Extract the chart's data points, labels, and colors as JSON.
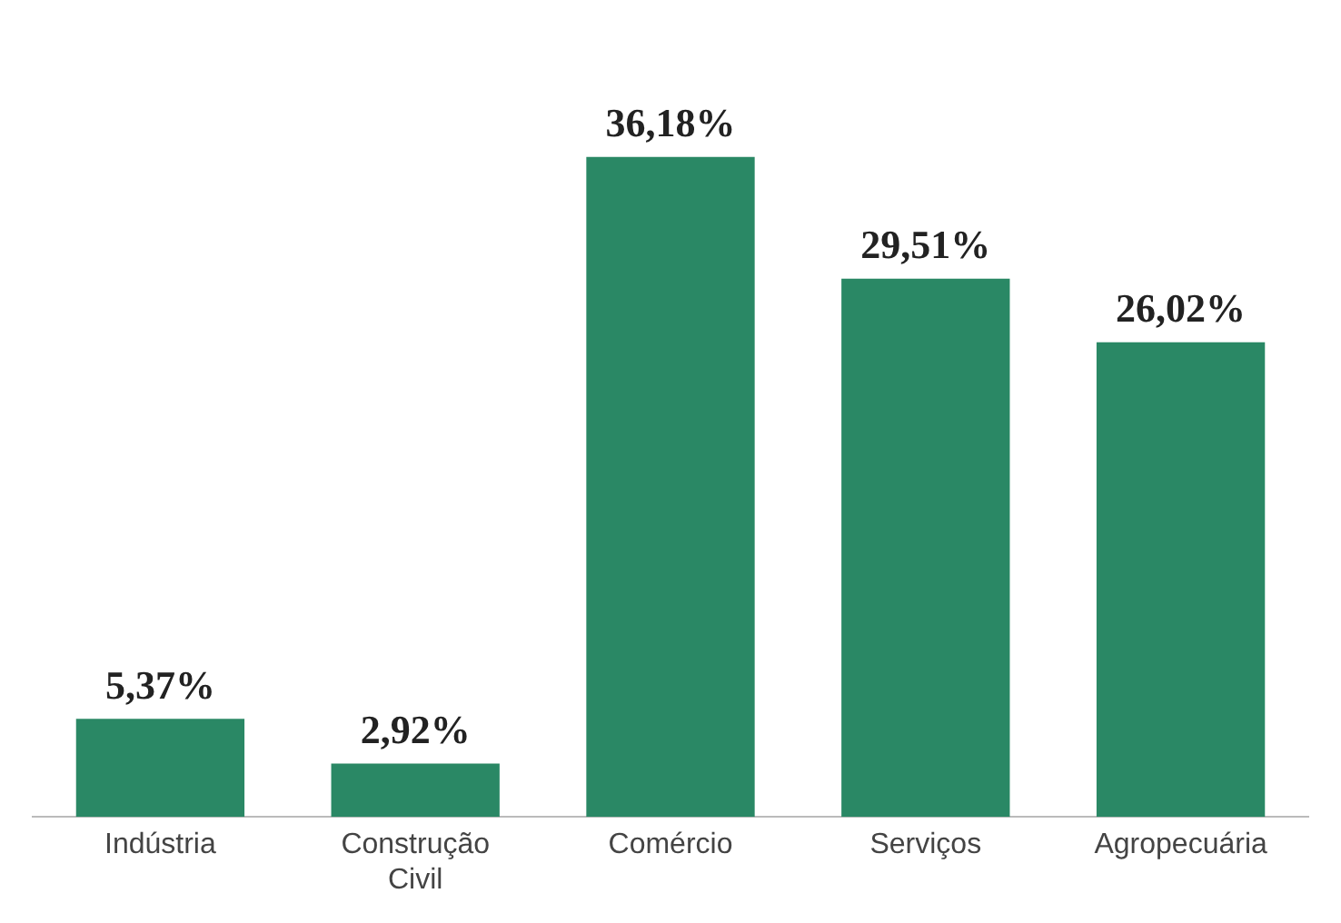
{
  "chart_data": {
    "type": "bar",
    "categories": [
      "Indústria",
      "Construção Civil",
      "Comércio",
      "Serviços",
      "Agropecuária"
    ],
    "values": [
      5.37,
      2.92,
      36.18,
      29.51,
      26.02
    ],
    "value_labels": [
      "5,37%",
      "2,92%",
      "36,18%",
      "29,51%",
      "26,02%"
    ],
    "color": "#2a8865",
    "grid": false,
    "legend": false
  }
}
